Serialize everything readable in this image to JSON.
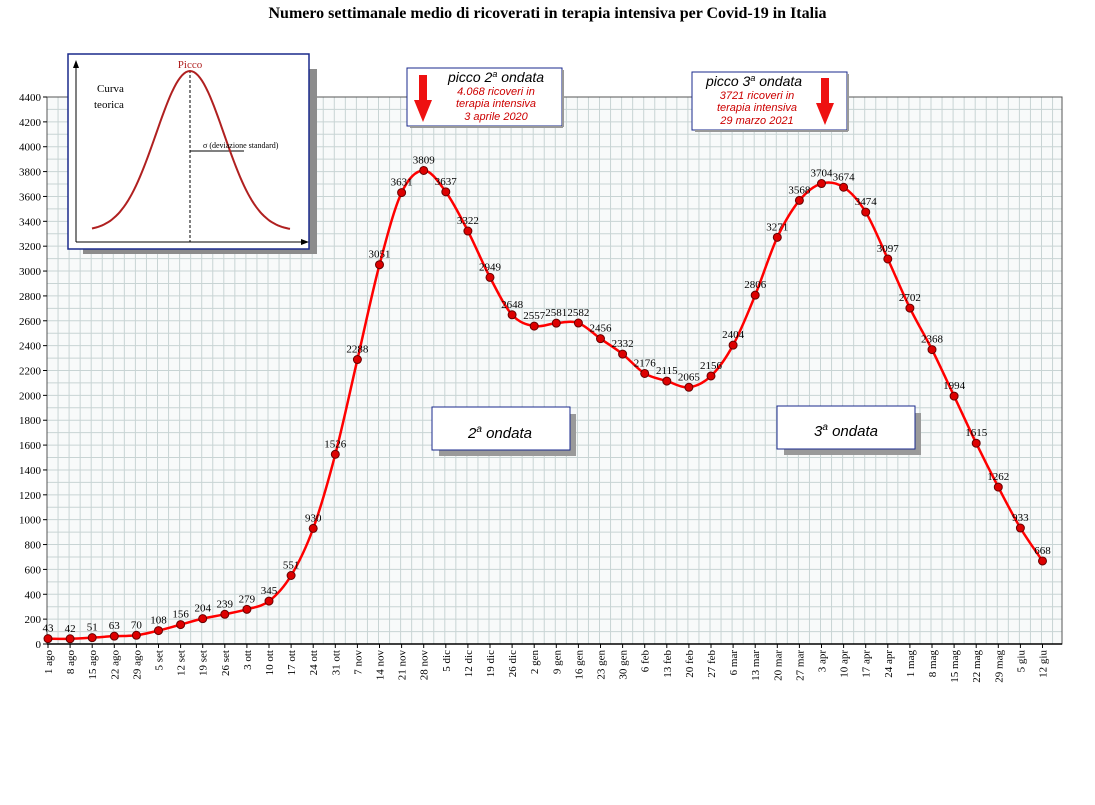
{
  "chart_data": {
    "type": "line",
    "title": "Numero settimanale medio di ricoverati in terapia intensiva per Covid-19 in Italia",
    "xlabel": "",
    "ylabel": "",
    "ylim": [
      0,
      4400
    ],
    "y_ticks": [
      0,
      200,
      400,
      600,
      800,
      1000,
      1200,
      1400,
      1600,
      1800,
      2000,
      2200,
      2400,
      2600,
      2800,
      3000,
      3200,
      3400,
      3600,
      3800,
      4000,
      4200,
      4400
    ],
    "grid": true,
    "categories": [
      "1 ago",
      "8 ago",
      "15 ago",
      "22 ago",
      "29 ago",
      "5 set",
      "12 set",
      "19 set",
      "26 set",
      "3 ott",
      "10 ott",
      "17 ott",
      "24 ott",
      "31 ott",
      "7 nov",
      "14 nov",
      "21 nov",
      "28 nov",
      "5 dic",
      "12 dic",
      "19 dic",
      "26 dic",
      "2 gen",
      "9 gen",
      "16 gen",
      "23 gen",
      "30 gen",
      "6 feb",
      "13 feb",
      "20 feb",
      "27 feb",
      "6 mar",
      "13 mar",
      "20 mar",
      "27 mar",
      "3 apr",
      "10 apr",
      "17 apr",
      "24 apr",
      "1 mag",
      "8 mag",
      "15 mag",
      "22 mag",
      "29 mag",
      "5 giu",
      "12 giu"
    ],
    "series": [
      {
        "color": "#ff0000",
        "marker_color": "#dd0000",
        "values": [
          43,
          42,
          51,
          63,
          70,
          108,
          156,
          204,
          239,
          279,
          345,
          551,
          930,
          1526,
          2288,
          3051,
          3631,
          3809,
          3637,
          3322,
          2949,
          2648,
          2557,
          2581,
          2582,
          2456,
          2332,
          2176,
          2115,
          2065,
          2156,
          2404,
          2806,
          3271,
          3568,
          3704,
          3674,
          3474,
          3097,
          2702,
          2368,
          1994,
          1615,
          1262,
          933,
          668
        ]
      }
    ],
    "data_labels": [
      "43",
      "42",
      "51",
      "63",
      "70",
      "108",
      "156",
      "204",
      "239",
      "279",
      "345",
      "551",
      "930",
      "1526",
      "2288",
      "3051",
      "3631",
      "3809",
      "3637",
      "3322",
      "2949",
      "2648",
      "2557",
      "2581",
      "2582",
      "2456",
      "2332",
      "2176",
      "2115",
      "2065",
      "2156",
      "2404",
      "2806",
      "3271",
      "3568",
      "3704",
      "3674",
      "3474",
      "3097",
      "2702",
      "2368",
      "1994",
      "1615",
      "1262",
      "933",
      "668"
    ],
    "annotations": {
      "peak2": {
        "title_main": "picco 2",
        "title_sup": "a",
        "title_rest": " ondata",
        "lines": [
          "4.068 ricoveri in",
          "terapia intensiva",
          "3 aprile 2020"
        ]
      },
      "peak3": {
        "title_main": "picco 3",
        "title_sup": "a",
        "title_rest": " ondata",
        "lines": [
          "3721 ricoveri in",
          "terapia intensiva",
          "29 marzo 2021"
        ]
      },
      "wave2": {
        "main": "2",
        "sup": "a",
        "rest": " ondata"
      },
      "wave3": {
        "main": "3",
        "sup": "a",
        "rest": " ondata"
      },
      "arrow_color": "#ee1111",
      "note_color": "#cc0000"
    },
    "inset": {
      "peak_label": "Picco",
      "curve_label_1": "Curva",
      "curve_label_2": "teorica",
      "sigma_label": "σ  (deviazione standard)"
    }
  }
}
